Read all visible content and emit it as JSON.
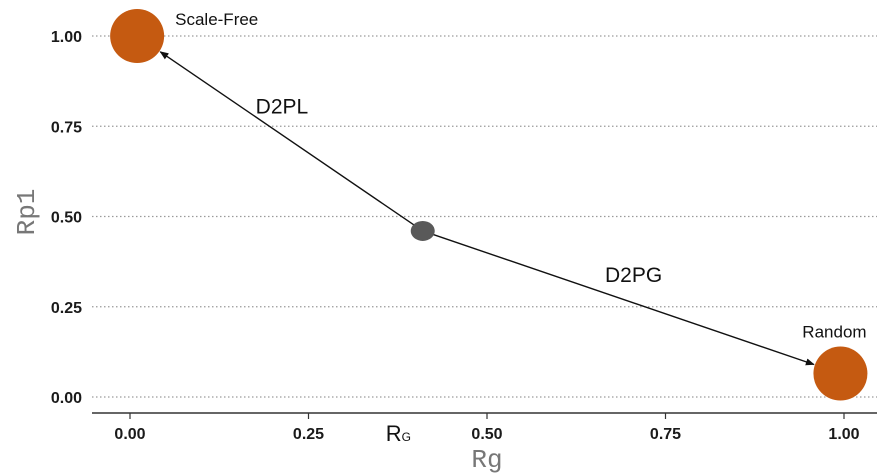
{
  "chart_data": {
    "type": "scatter",
    "xlabel": "Rg",
    "ylabel": "Rp1",
    "xlim": [
      -0.05,
      1.05
    ],
    "ylim": [
      -0.05,
      1.06
    ],
    "xticks": [
      0.0,
      0.25,
      0.5,
      0.75,
      1.0
    ],
    "xtick_labels": [
      "0.00",
      "0.25",
      "0.50",
      "0.75",
      "1.00"
    ],
    "yticks": [
      0.0,
      0.25,
      0.5,
      0.75,
      1.0
    ],
    "ytick_labels": [
      "0.00",
      "0.25",
      "0.50",
      "0.75",
      "1.00"
    ],
    "grid": "horizontal-dotted",
    "points": [
      {
        "label": "Scale-Free",
        "x": 0.01,
        "y": 1.0,
        "color": "#c55a11",
        "size": "large"
      },
      {
        "label": "",
        "x": 0.41,
        "y": 0.46,
        "color": "#595959",
        "size": "small"
      },
      {
        "label": "Random",
        "x": 0.995,
        "y": 0.065,
        "color": "#c55a11",
        "size": "large"
      }
    ],
    "arrows": [
      {
        "label": "D2PL",
        "from": [
          0.41,
          0.46
        ],
        "to": [
          0.01,
          1.0
        ]
      },
      {
        "label": "D2PG",
        "from": [
          0.41,
          0.46
        ],
        "to": [
          0.995,
          0.065
        ]
      }
    ],
    "annotations": [
      {
        "text_main": "R",
        "text_sub": "G",
        "x": 0.375
      }
    ]
  },
  "colors": {
    "point_large": "#c55a11",
    "point_small": "#595959",
    "grid": "#9a9a9a",
    "axis": "#333333"
  }
}
